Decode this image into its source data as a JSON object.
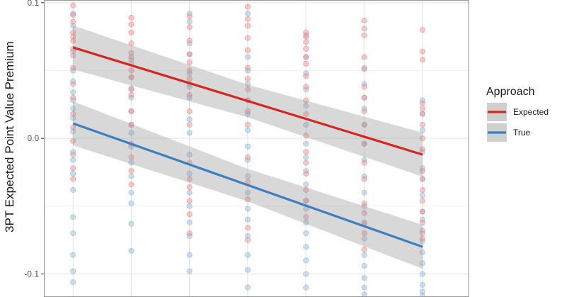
{
  "chart_data": {
    "type": "scatter",
    "ylabel": "3PT Expected Point Value Premium",
    "y_ticks": [
      "0.1",
      "0.0",
      "-0.1"
    ],
    "y_tick_values": [
      0.1,
      0.0,
      -0.1
    ],
    "ylim": [
      -0.117,
      0.102
    ],
    "xlim": [
      0.5,
      7.8
    ],
    "x_positions": [
      1,
      2,
      3,
      4,
      5,
      6,
      7
    ],
    "grid": true,
    "legend": {
      "title": "Approach",
      "placement": "right",
      "entries": [
        {
          "label": "Expected",
          "color": "#d7261e"
        },
        {
          "label": "True",
          "color": "#3b7fbf"
        }
      ]
    },
    "fit_lines": [
      {
        "label": "Expected",
        "color": "#d7261e",
        "x": [
          1,
          7
        ],
        "y": [
          0.067,
          -0.012
        ],
        "band": 0.012
      },
      {
        "label": "True",
        "color": "#3b7fbf",
        "x": [
          1,
          7
        ],
        "y": [
          0.011,
          -0.08
        ],
        "band": 0.012
      }
    ],
    "point_colors": {
      "Expected": "#f08a8a",
      "True": "#8fb8dc"
    },
    "points": {
      "Expected": [
        [
          1,
          0.098
        ],
        [
          1,
          0.091
        ],
        [
          1,
          0.086
        ],
        [
          1,
          0.078
        ],
        [
          1,
          0.075
        ],
        [
          1,
          0.072
        ],
        [
          1,
          0.066
        ],
        [
          1,
          0.061
        ],
        [
          1,
          0.052
        ],
        [
          1,
          0.04
        ],
        [
          1,
          0.03
        ],
        [
          1,
          0.018
        ],
        [
          1,
          0.008
        ],
        [
          1,
          -0.002
        ],
        [
          1,
          -0.012
        ],
        [
          1,
          -0.022
        ],
        [
          1,
          -0.03
        ],
        [
          2,
          0.089
        ],
        [
          2,
          0.084
        ],
        [
          2,
          0.078
        ],
        [
          2,
          0.07
        ],
        [
          2,
          0.063
        ],
        [
          2,
          0.058
        ],
        [
          2,
          0.05
        ],
        [
          2,
          0.045
        ],
        [
          2,
          0.036
        ],
        [
          2,
          0.032
        ],
        [
          2,
          0.02
        ],
        [
          2,
          0.01
        ],
        [
          2,
          -0.004
        ],
        [
          2,
          -0.014
        ],
        [
          2,
          -0.024
        ],
        [
          2,
          -0.034
        ],
        [
          3,
          0.09
        ],
        [
          3,
          0.082
        ],
        [
          3,
          0.072
        ],
        [
          3,
          0.062
        ],
        [
          3,
          0.056
        ],
        [
          3,
          0.05
        ],
        [
          3,
          0.044
        ],
        [
          3,
          0.04
        ],
        [
          3,
          0.032
        ],
        [
          3,
          0.02
        ],
        [
          3,
          0.01
        ],
        [
          3,
          -0.018
        ],
        [
          3,
          -0.03
        ],
        [
          3,
          -0.036
        ],
        [
          3,
          -0.046
        ],
        [
          3,
          -0.056
        ],
        [
          3,
          -0.07
        ],
        [
          4,
          0.097
        ],
        [
          4,
          0.088
        ],
        [
          4,
          0.083
        ],
        [
          4,
          0.074
        ],
        [
          4,
          0.065
        ],
        [
          4,
          0.052
        ],
        [
          4,
          0.044
        ],
        [
          4,
          0.036
        ],
        [
          4,
          0.028
        ],
        [
          4,
          0.02
        ],
        [
          4,
          0.01
        ],
        [
          4,
          -0.014
        ],
        [
          4,
          -0.032
        ],
        [
          4,
          -0.045
        ],
        [
          4,
          -0.066
        ],
        [
          4,
          -0.075
        ],
        [
          5,
          0.078
        ],
        [
          5,
          0.075
        ],
        [
          5,
          0.071
        ],
        [
          5,
          0.066
        ],
        [
          5,
          0.06
        ],
        [
          5,
          0.055
        ],
        [
          5,
          0.046
        ],
        [
          5,
          0.038
        ],
        [
          5,
          0.028
        ],
        [
          5,
          0.018
        ],
        [
          5,
          0.002
        ],
        [
          5,
          -0.01
        ],
        [
          5,
          -0.018
        ],
        [
          5,
          -0.026
        ],
        [
          5,
          -0.038
        ],
        [
          5,
          -0.046
        ],
        [
          5,
          -0.058
        ],
        [
          6,
          0.087
        ],
        [
          6,
          0.081
        ],
        [
          6,
          0.076
        ],
        [
          6,
          0.06
        ],
        [
          6,
          0.051
        ],
        [
          6,
          0.038
        ],
        [
          6,
          0.03
        ],
        [
          6,
          0.02
        ],
        [
          6,
          0.01
        ],
        [
          6,
          -0.004
        ],
        [
          6,
          -0.018
        ],
        [
          6,
          -0.03
        ],
        [
          6,
          -0.048
        ],
        [
          6,
          -0.055
        ],
        [
          6,
          -0.063
        ],
        [
          6,
          -0.07
        ],
        [
          6,
          -0.082
        ],
        [
          7,
          0.08
        ],
        [
          7,
          0.064
        ],
        [
          7,
          0.058
        ],
        [
          7,
          0.026
        ],
        [
          7,
          0.022
        ],
        [
          7,
          0.018
        ],
        [
          7,
          0.01
        ],
        [
          7,
          0.0
        ],
        [
          7,
          -0.008
        ],
        [
          7,
          -0.024
        ],
        [
          7,
          -0.03
        ],
        [
          7,
          -0.038
        ],
        [
          7,
          -0.046
        ],
        [
          7,
          -0.054
        ],
        [
          7,
          -0.062
        ],
        [
          7,
          -0.07
        ],
        [
          7,
          -0.074
        ]
      ],
      "True": [
        [
          1,
          0.092
        ],
        [
          1,
          0.083
        ],
        [
          1,
          0.064
        ],
        [
          1,
          0.05
        ],
        [
          1,
          0.042
        ],
        [
          1,
          0.034
        ],
        [
          1,
          0.028
        ],
        [
          1,
          0.022
        ],
        [
          1,
          0.015
        ],
        [
          1,
          0.005
        ],
        [
          1,
          -0.01
        ],
        [
          1,
          -0.016
        ],
        [
          1,
          -0.026
        ],
        [
          1,
          -0.038
        ],
        [
          1,
          -0.058
        ],
        [
          1,
          -0.07
        ],
        [
          1,
          -0.086
        ],
        [
          1,
          -0.098
        ],
        [
          1,
          -0.106
        ],
        [
          2,
          0.06
        ],
        [
          2,
          0.055
        ],
        [
          2,
          0.045
        ],
        [
          2,
          0.037
        ],
        [
          2,
          0.03
        ],
        [
          2,
          0.02
        ],
        [
          2,
          0.01
        ],
        [
          2,
          0.004
        ],
        [
          2,
          -0.006
        ],
        [
          2,
          -0.018
        ],
        [
          2,
          -0.028
        ],
        [
          2,
          -0.04
        ],
        [
          2,
          -0.048
        ],
        [
          2,
          -0.063
        ],
        [
          2,
          -0.083
        ],
        [
          3,
          0.092
        ],
        [
          3,
          0.086
        ],
        [
          3,
          0.07
        ],
        [
          3,
          0.062
        ],
        [
          3,
          0.048
        ],
        [
          3,
          0.038
        ],
        [
          3,
          0.03
        ],
        [
          3,
          0.014
        ],
        [
          3,
          0.004
        ],
        [
          3,
          -0.012
        ],
        [
          3,
          -0.026
        ],
        [
          3,
          -0.04
        ],
        [
          3,
          -0.05
        ],
        [
          3,
          -0.062
        ],
        [
          3,
          -0.072
        ],
        [
          3,
          -0.086
        ],
        [
          3,
          -0.098
        ],
        [
          4,
          0.092
        ],
        [
          4,
          0.06
        ],
        [
          4,
          0.05
        ],
        [
          4,
          0.04
        ],
        [
          4,
          0.028
        ],
        [
          4,
          0.018
        ],
        [
          4,
          0.006
        ],
        [
          4,
          -0.006
        ],
        [
          4,
          -0.016
        ],
        [
          4,
          -0.028
        ],
        [
          4,
          -0.04
        ],
        [
          4,
          -0.052
        ],
        [
          4,
          -0.06
        ],
        [
          4,
          -0.072
        ],
        [
          4,
          -0.086
        ],
        [
          4,
          -0.097
        ],
        [
          4,
          -0.11
        ],
        [
          5,
          0.076
        ],
        [
          5,
          0.06
        ],
        [
          5,
          0.048
        ],
        [
          5,
          0.036
        ],
        [
          5,
          0.024
        ],
        [
          5,
          0.01
        ],
        [
          5,
          -0.004
        ],
        [
          5,
          -0.014
        ],
        [
          5,
          -0.024
        ],
        [
          5,
          -0.034
        ],
        [
          5,
          -0.046
        ],
        [
          5,
          -0.052
        ],
        [
          5,
          -0.062
        ],
        [
          5,
          -0.07
        ],
        [
          5,
          -0.08
        ],
        [
          5,
          -0.09
        ],
        [
          5,
          -0.1
        ],
        [
          5,
          -0.11
        ],
        [
          6,
          0.052
        ],
        [
          6,
          0.04
        ],
        [
          6,
          0.03
        ],
        [
          6,
          0.022
        ],
        [
          6,
          0.01
        ],
        [
          6,
          -0.004
        ],
        [
          6,
          -0.016
        ],
        [
          6,
          -0.028
        ],
        [
          6,
          -0.04
        ],
        [
          6,
          -0.05
        ],
        [
          6,
          -0.062
        ],
        [
          6,
          -0.074
        ],
        [
          6,
          -0.086
        ],
        [
          6,
          -0.094
        ],
        [
          6,
          -0.103
        ],
        [
          6,
          -0.11
        ],
        [
          6,
          -0.115
        ],
        [
          7,
          0.028
        ],
        [
          7,
          0.018
        ],
        [
          7,
          0.006
        ],
        [
          7,
          -0.01
        ],
        [
          7,
          -0.022
        ],
        [
          7,
          -0.03
        ],
        [
          7,
          -0.042
        ],
        [
          7,
          -0.054
        ],
        [
          7,
          -0.06
        ],
        [
          7,
          -0.068
        ],
        [
          7,
          -0.076
        ],
        [
          7,
          -0.084
        ],
        [
          7,
          -0.092
        ],
        [
          7,
          -0.1
        ],
        [
          7,
          -0.108
        ],
        [
          7,
          -0.113
        ],
        [
          7,
          -0.116
        ]
      ]
    }
  }
}
